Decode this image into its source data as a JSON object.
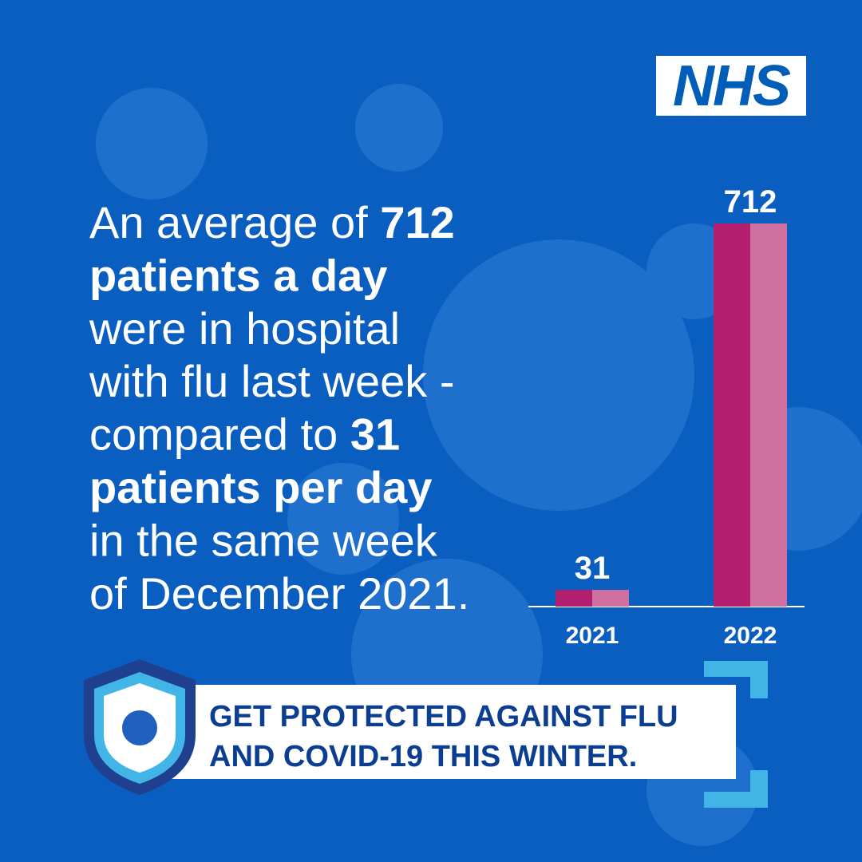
{
  "logo": "NHS",
  "headline": [
    [
      {
        "text": "An average of "
      },
      {
        "text": "712",
        "bold": true
      }
    ],
    [
      {
        "text": "patients a day",
        "bold": true
      }
    ],
    [
      {
        "text": "were in hospital"
      }
    ],
    [
      {
        "text": "with flu last week -"
      }
    ],
    [
      {
        "text": "compared to "
      },
      {
        "text": "31",
        "bold": true
      }
    ],
    [
      {
        "text": "patients per day",
        "bold": true
      }
    ],
    [
      {
        "text": "in the same week"
      }
    ],
    [
      {
        "text": "of December 2021."
      }
    ]
  ],
  "cta": [
    "GET PROTECTED AGAINST FLU",
    "AND COVID-19 THIS WINTER."
  ],
  "chart_data": {
    "type": "bar",
    "categories": [
      "2021",
      "2022"
    ],
    "values": [
      31,
      712
    ],
    "colors": [
      "#b3206f",
      "#d070a0"
    ]
  }
}
